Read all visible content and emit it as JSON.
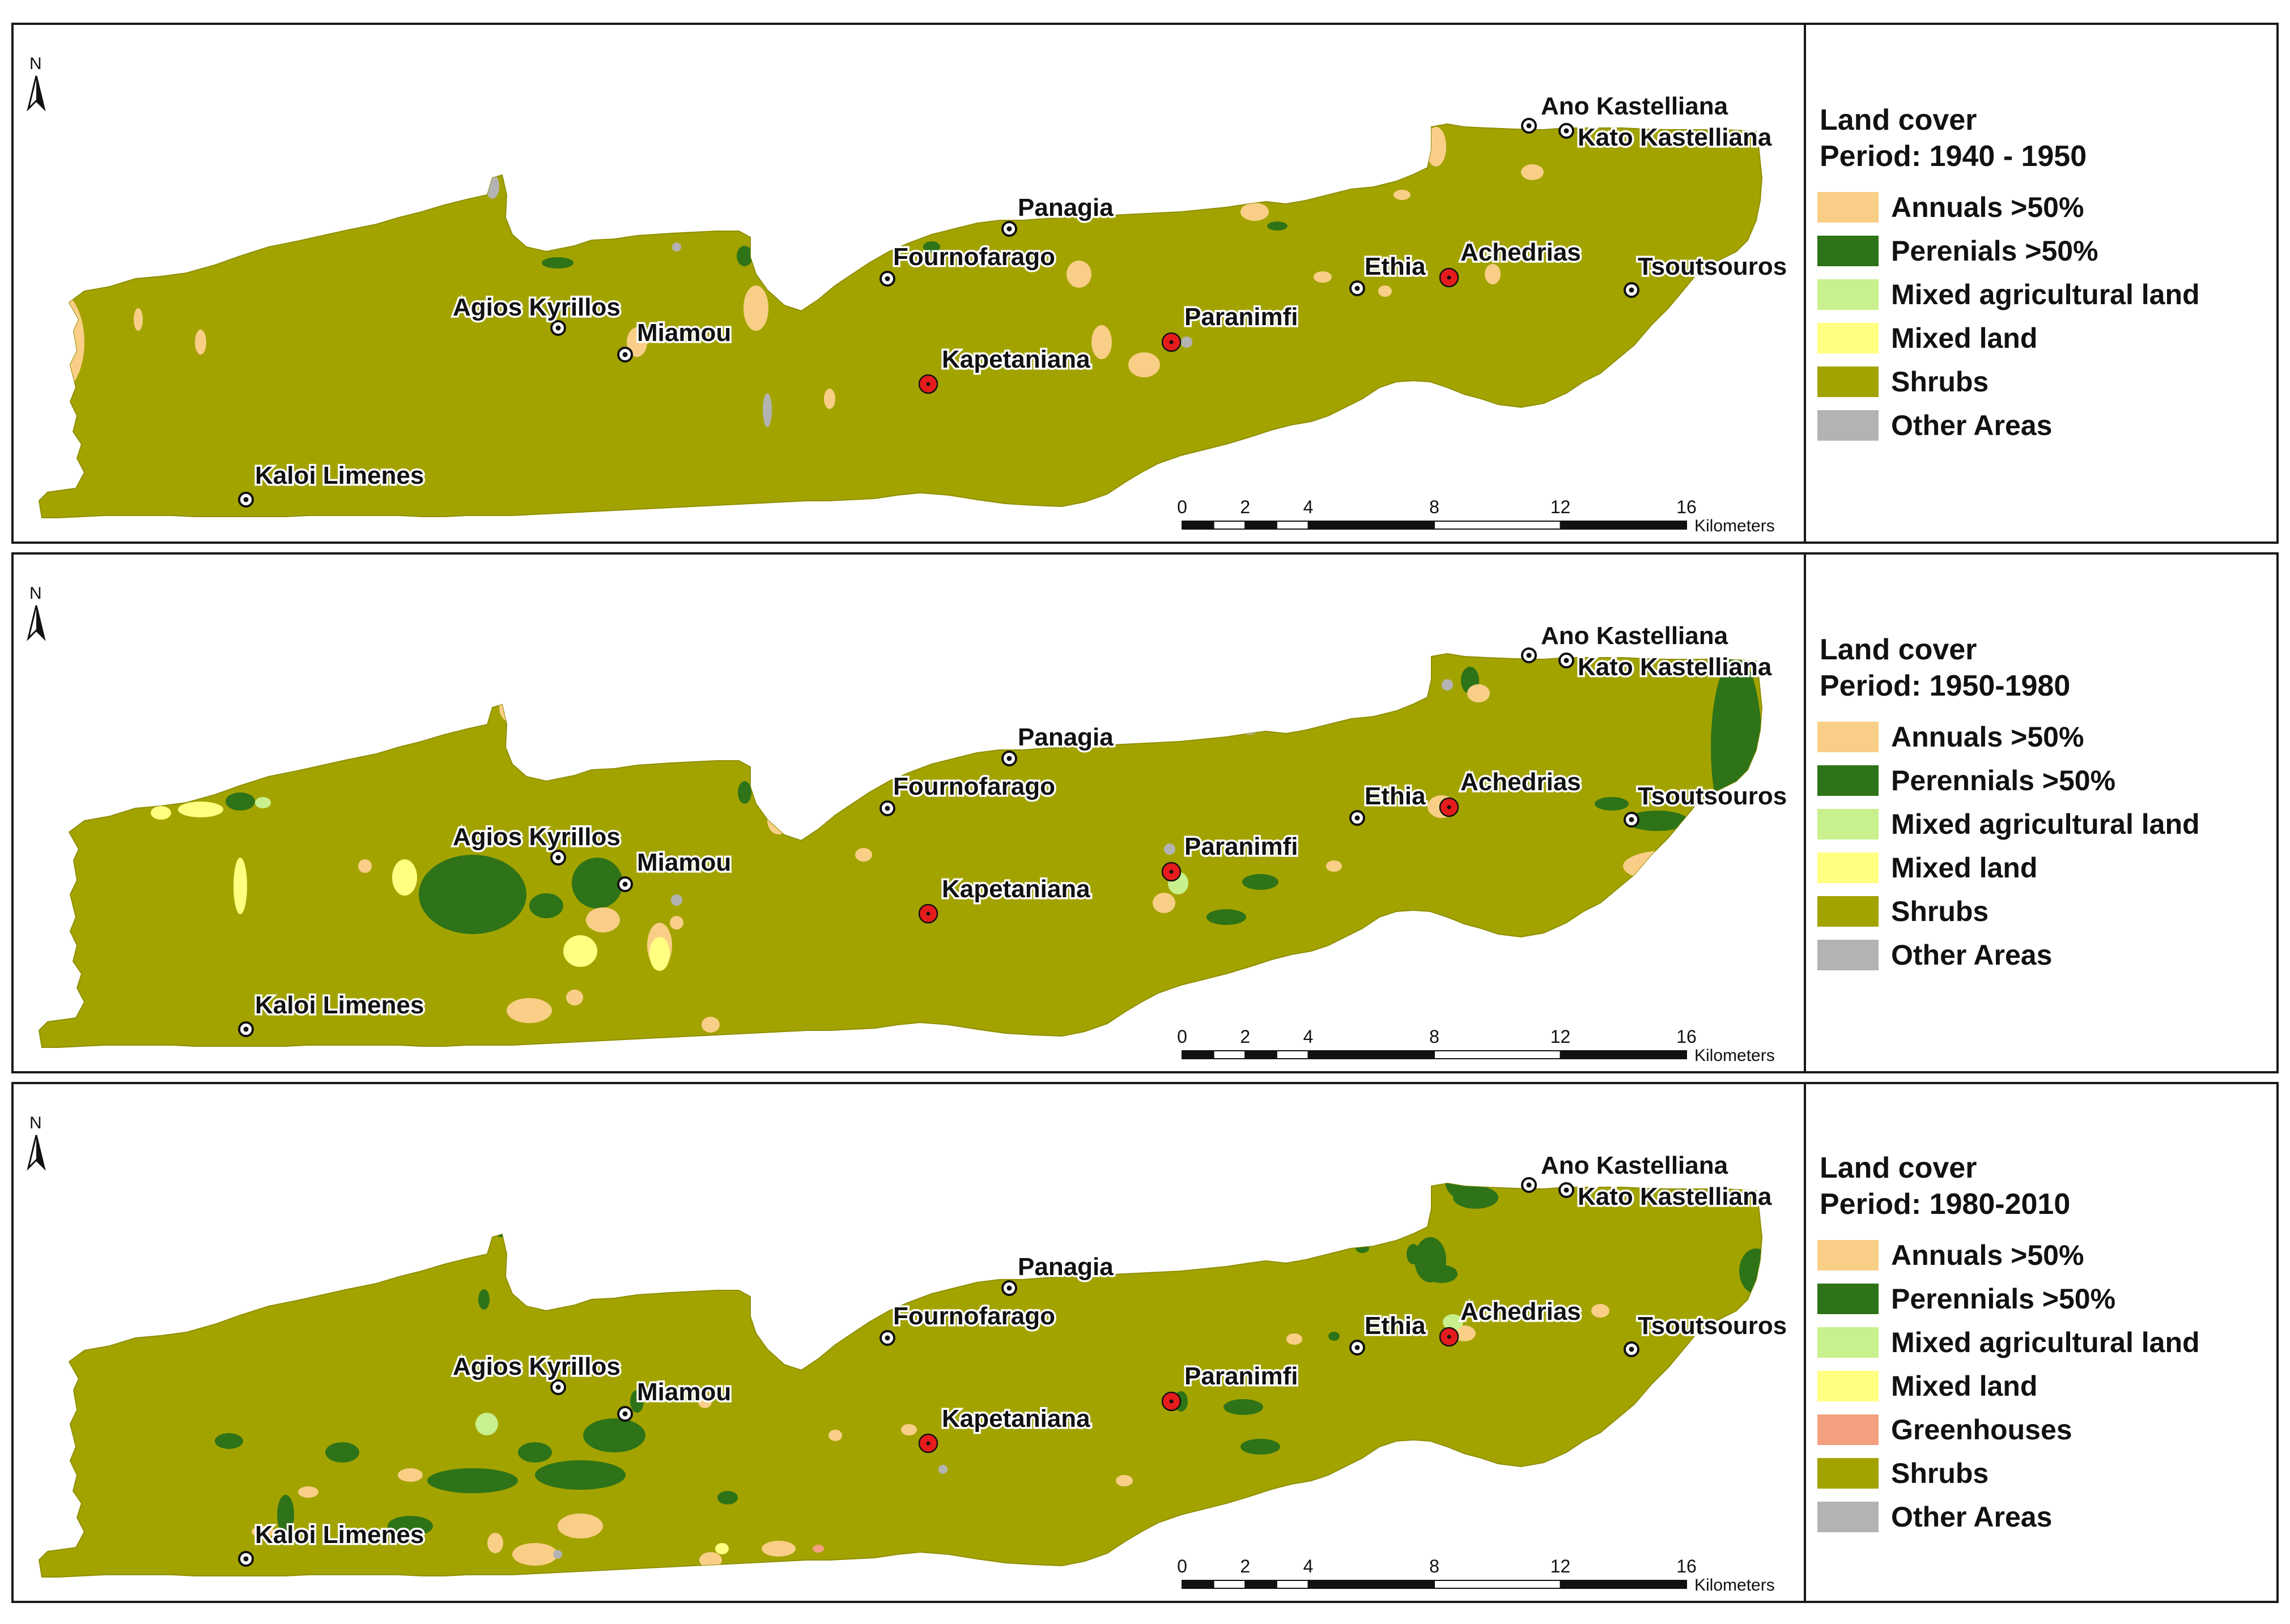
{
  "colors": {
    "annuals": "#f9cf87",
    "perennials": "#2e7318",
    "mixed_agri": "#c8f08c",
    "mixed_land": "#ffff80",
    "greenhouses": "#f2a07f",
    "shrubs": "#a3a300",
    "other": "#b3b3b3",
    "town_marker": "#ffffff",
    "village_marker": "#e61c1c"
  },
  "north_label": "N",
  "scale_bar": {
    "ticks": [
      "0",
      "2",
      "4",
      "8",
      "12",
      "16"
    ],
    "unit": "Kilometers"
  },
  "places": [
    {
      "name": "Ano Kastelliana",
      "type": "town"
    },
    {
      "name": "Kato Kastelliana",
      "type": "town"
    },
    {
      "name": "Panagia",
      "type": "town"
    },
    {
      "name": "Fournofarago",
      "type": "town"
    },
    {
      "name": "Ethia",
      "type": "town"
    },
    {
      "name": "Achedrias",
      "type": "village-red"
    },
    {
      "name": "Tsoutsouros",
      "type": "town"
    },
    {
      "name": "Agios Kyrillos",
      "type": "town"
    },
    {
      "name": "Miamou",
      "type": "town"
    },
    {
      "name": "Paranimfi",
      "type": "village-red"
    },
    {
      "name": "Kapetaniana",
      "type": "village-red"
    },
    {
      "name": "Kaloi Limenes",
      "type": "town"
    }
  ],
  "panels": [
    {
      "legend_title": "Land cover",
      "legend_period": "Period: 1940 - 1950",
      "legend_items": [
        {
          "label": "Annuals >50%",
          "class": "annuals"
        },
        {
          "label": "Perenials >50%",
          "class": "perennials"
        },
        {
          "label": "Mixed agricultural land",
          "class": "mixed_agri"
        },
        {
          "label": "Mixed land",
          "class": "mixed_land"
        },
        {
          "label": "Shrubs",
          "class": "shrubs"
        },
        {
          "label": "Other Areas",
          "class": "other"
        }
      ]
    },
    {
      "legend_title": "Land cover",
      "legend_period": "Period: 1950-1980",
      "legend_items": [
        {
          "label": "Annuals >50%",
          "class": "annuals"
        },
        {
          "label": "Perennials >50%",
          "class": "perennials"
        },
        {
          "label": "Mixed agricultural land",
          "class": "mixed_agri"
        },
        {
          "label": "Mixed land",
          "class": "mixed_land"
        },
        {
          "label": "Shrubs",
          "class": "shrubs"
        },
        {
          "label": "Other Areas",
          "class": "other"
        }
      ]
    },
    {
      "legend_title": "Land cover",
      "legend_period": "Period: 1980-2010",
      "legend_items": [
        {
          "label": "Annuals >50%",
          "class": "annuals"
        },
        {
          "label": "Perennials >50%",
          "class": "perennials"
        },
        {
          "label": "Mixed agricultural land",
          "class": "mixed_agri"
        },
        {
          "label": "Mixed land",
          "class": "mixed_land"
        },
        {
          "label": "Greenhouses",
          "class": "greenhouses"
        },
        {
          "label": "Shrubs",
          "class": "shrubs"
        },
        {
          "label": "Other Areas",
          "class": "other"
        }
      ]
    }
  ]
}
